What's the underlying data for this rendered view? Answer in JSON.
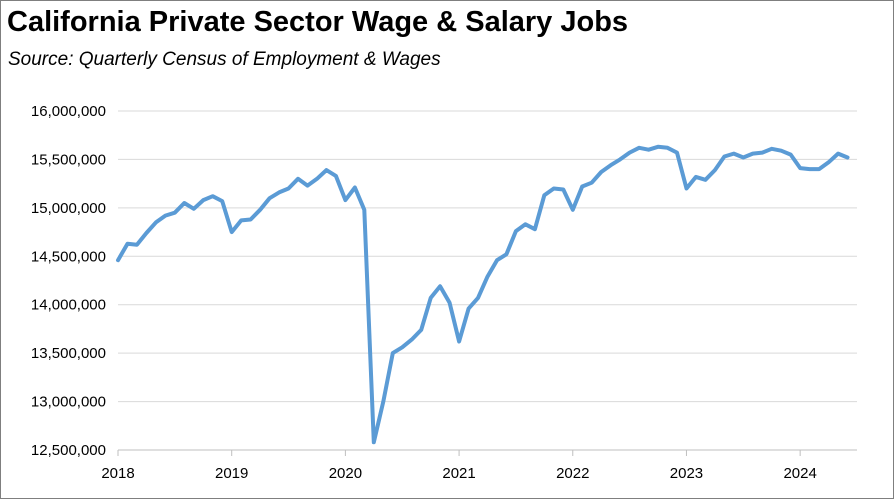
{
  "chart_data": {
    "type": "line",
    "title": "California Private Sector Wage & Salary Jobs",
    "subtitle": "Source:  Quarterly Census of Employment & Wages",
    "xlabel": "",
    "ylabel": "",
    "xlim": [
      2018,
      2024.5
    ],
    "ylim": [
      12500000,
      16000000
    ],
    "grid": true,
    "legend": "none",
    "line_color": "#5b9bd5",
    "y_ticks": [
      12500000,
      13000000,
      13500000,
      14000000,
      14500000,
      15000000,
      15500000,
      16000000
    ],
    "y_tick_labels": [
      "12,500,000",
      "13,000,000",
      "13,500,000",
      "14,000,000",
      "14,500,000",
      "15,000,000",
      "15,500,000",
      "16,000,000"
    ],
    "x_ticks": [
      2018,
      2019,
      2020,
      2021,
      2022,
      2023,
      2024
    ],
    "x_tick_labels": [
      "2018",
      "2019",
      "2020",
      "2021",
      "2022",
      "2023",
      "2024"
    ],
    "series": [
      {
        "x": [
          "2018-01",
          "2018-02",
          "2018-03",
          "2018-04",
          "2018-05",
          "2018-06",
          "2018-07",
          "2018-08",
          "2018-09",
          "2018-10",
          "2018-11",
          "2018-12",
          "2019-01",
          "2019-02",
          "2019-03",
          "2019-04",
          "2019-05",
          "2019-06",
          "2019-07",
          "2019-08",
          "2019-09",
          "2019-10",
          "2019-11",
          "2019-12",
          "2020-01",
          "2020-02",
          "2020-03",
          "2020-04",
          "2020-05",
          "2020-06",
          "2020-07",
          "2020-08",
          "2020-09",
          "2020-10",
          "2020-11",
          "2020-12",
          "2021-01",
          "2021-02",
          "2021-03",
          "2021-04",
          "2021-05",
          "2021-06",
          "2021-07",
          "2021-08",
          "2021-09",
          "2021-10",
          "2021-11",
          "2021-12",
          "2022-01",
          "2022-02",
          "2022-03",
          "2022-04",
          "2022-05",
          "2022-06",
          "2022-07",
          "2022-08",
          "2022-09",
          "2022-10",
          "2022-11",
          "2022-12",
          "2023-01",
          "2023-02",
          "2023-03",
          "2023-04",
          "2023-05",
          "2023-06",
          "2023-07",
          "2023-08",
          "2023-09",
          "2023-10",
          "2023-11",
          "2023-12",
          "2024-01",
          "2024-02",
          "2024-03",
          "2024-04",
          "2024-05",
          "2024-06"
        ],
        "values": [
          14460000,
          14630000,
          14620000,
          14740000,
          14850000,
          14920000,
          14950000,
          15050000,
          14990000,
          15080000,
          15120000,
          15070000,
          14750000,
          14870000,
          14880000,
          14980000,
          15100000,
          15160000,
          15200000,
          15300000,
          15230000,
          15300000,
          15390000,
          15330000,
          15080000,
          15210000,
          14980000,
          12580000,
          13000000,
          13500000,
          13560000,
          13640000,
          13740000,
          14070000,
          14190000,
          14020000,
          13620000,
          13960000,
          14070000,
          14290000,
          14460000,
          14520000,
          14760000,
          14830000,
          14780000,
          15130000,
          15200000,
          15190000,
          14980000,
          15220000,
          15260000,
          15370000,
          15440000,
          15500000,
          15570000,
          15620000,
          15600000,
          15630000,
          15620000,
          15570000,
          15200000,
          15320000,
          15290000,
          15390000,
          15530000,
          15560000,
          15520000,
          15560000,
          15570000,
          15610000,
          15590000,
          15550000,
          15410000,
          15400000,
          15400000,
          15470000,
          15560000,
          15520000
        ]
      }
    ]
  }
}
